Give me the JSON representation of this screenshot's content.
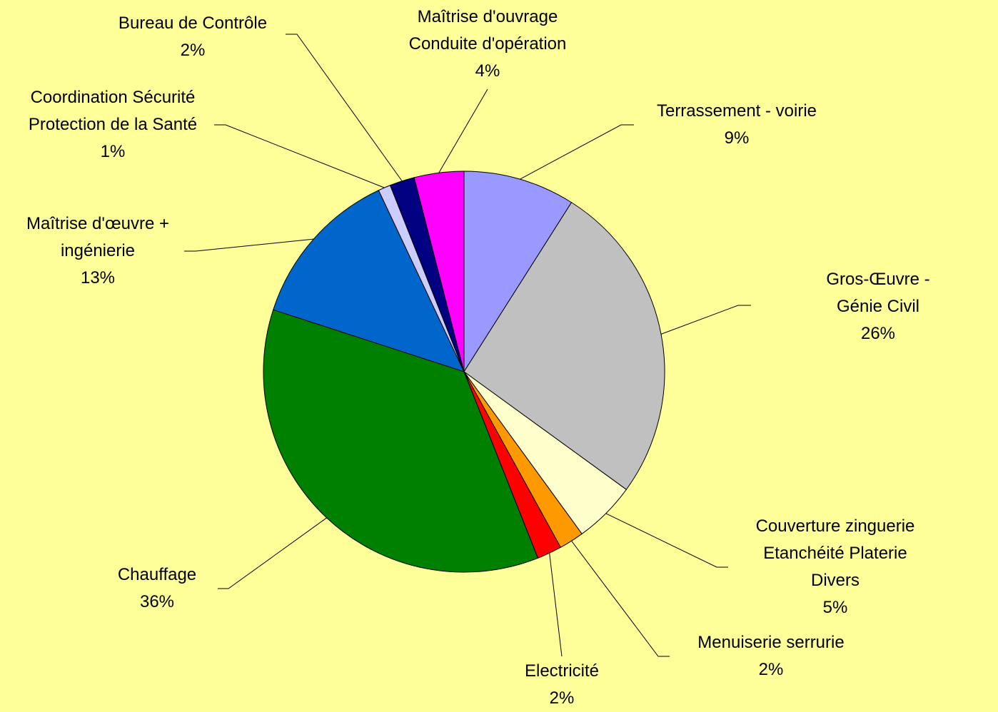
{
  "chart_data": {
    "type": "pie",
    "categories": [
      "Terrassement - voirie",
      "Gros-Œuvre - Génie Civil",
      "Couverture zinguerie\nEtanchéité Platerie\nDivers",
      "Menuiserie serrurie",
      "Electricité",
      "Chauffage",
      "Maîtrise d'œuvre +\ningénierie",
      "Coordination Sécurité\nProtection de la Santé",
      "Bureau de Contrôle",
      "Maîtrise d'ouvrage\nConduite d'opération"
    ],
    "values": [
      9,
      26,
      5,
      2,
      2,
      36,
      13,
      1,
      2,
      4
    ],
    "value_labels": [
      "9%",
      "26%",
      "5%",
      "2%",
      "2%",
      "36%",
      "13%",
      "1%",
      "2%",
      "4%"
    ],
    "colors": [
      "#9999ff",
      "#c0c0c0",
      "#ffffcc",
      "#ff9900",
      "#ff0000",
      "#008000",
      "#0066cc",
      "#ccccff",
      "#000080",
      "#ff00ff"
    ]
  }
}
